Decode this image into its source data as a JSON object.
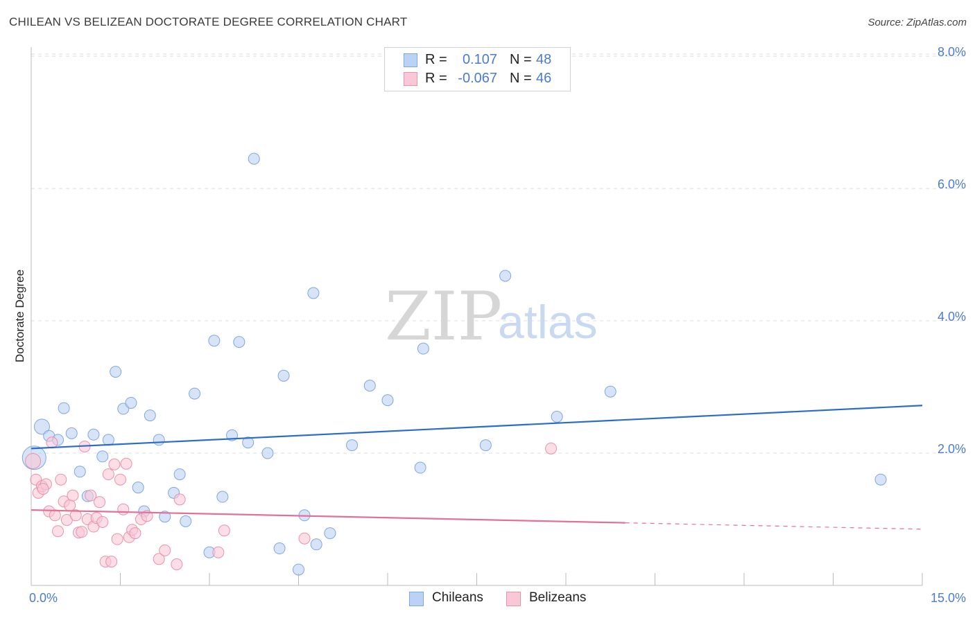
{
  "header": {
    "title": "CHILEAN VS BELIZEAN DOCTORATE DEGREE CORRELATION CHART",
    "source": "Source: ZipAtlas.com"
  },
  "watermark": {
    "zip": "ZIP",
    "atlas": "atlas"
  },
  "legend": {
    "rows": [
      {
        "r_label": "R =",
        "r_value": "0.107",
        "n_label": "N =",
        "n_value": "48"
      },
      {
        "r_label": "R =",
        "r_value": "-0.067",
        "n_label": "N =",
        "n_value": "46"
      }
    ]
  },
  "bottom_legend": [
    "Chileans",
    "Belizeans"
  ],
  "colors": {
    "blue_fill": "#bcd2f4",
    "blue_stroke": "#7fa6e0",
    "blue_line": "#2a6ccc",
    "pink_fill": "#f8c8d6",
    "pink_stroke": "#e991ae",
    "pink_line": "#e46f97",
    "tick_text": "#4a7bd0",
    "grid": "#dcdcdc"
  },
  "chart_data": {
    "type": "scatter",
    "title": "CHILEAN VS BELIZEAN DOCTORATE DEGREE CORRELATION CHART",
    "xlabel": "",
    "ylabel": "Doctorate Degree",
    "xlim": [
      0,
      15
    ],
    "ylim": [
      0,
      8.2
    ],
    "x_tick_labels": [
      {
        "value": 0,
        "label": "0.0%"
      },
      {
        "value": 15,
        "label": "15.0%"
      }
    ],
    "y_tick_labels": [
      {
        "value": 2,
        "label": "2.0%"
      },
      {
        "value": 4,
        "label": "4.0%"
      },
      {
        "value": 6,
        "label": "6.0%"
      },
      {
        "value": 8,
        "label": "8.0%"
      }
    ],
    "x_minor_ticks": [
      1.5,
      3.0,
      4.5,
      6.0,
      7.5,
      9.0,
      10.5,
      12.0,
      13.5,
      15.0
    ],
    "grid": true,
    "series": [
      {
        "name": "Chileans",
        "color": "blue",
        "R": 0.107,
        "N": 48,
        "trend": {
          "x0": 0,
          "y0": 2.07,
          "x1": 15,
          "y1": 2.72,
          "dashed_from": null
        },
        "points": [
          [
            0.05,
            1.93
          ],
          [
            0.18,
            2.4
          ],
          [
            0.3,
            2.26
          ],
          [
            0.45,
            2.2
          ],
          [
            0.55,
            2.68
          ],
          [
            0.68,
            2.3
          ],
          [
            0.82,
            1.72
          ],
          [
            0.95,
            1.35
          ],
          [
            1.05,
            2.28
          ],
          [
            1.2,
            1.95
          ],
          [
            1.3,
            2.2
          ],
          [
            1.42,
            3.23
          ],
          [
            1.55,
            2.67
          ],
          [
            1.68,
            2.76
          ],
          [
            1.8,
            1.48
          ],
          [
            1.9,
            1.12
          ],
          [
            2.0,
            2.57
          ],
          [
            2.15,
            2.2
          ],
          [
            2.25,
            1.04
          ],
          [
            2.4,
            1.4
          ],
          [
            2.5,
            1.68
          ],
          [
            2.6,
            0.97
          ],
          [
            2.75,
            2.9
          ],
          [
            3.0,
            0.5
          ],
          [
            3.08,
            3.7
          ],
          [
            3.22,
            1.34
          ],
          [
            3.38,
            2.27
          ],
          [
            3.5,
            3.68
          ],
          [
            3.65,
            2.16
          ],
          [
            3.75,
            6.45
          ],
          [
            3.98,
            2.0
          ],
          [
            4.18,
            0.56
          ],
          [
            4.25,
            3.17
          ],
          [
            4.5,
            0.24
          ],
          [
            4.6,
            1.06
          ],
          [
            4.75,
            4.42
          ],
          [
            4.8,
            0.62
          ],
          [
            5.03,
            0.79
          ],
          [
            5.4,
            2.12
          ],
          [
            5.7,
            3.02
          ],
          [
            6.0,
            2.8
          ],
          [
            6.55,
            1.78
          ],
          [
            6.6,
            3.58
          ],
          [
            7.65,
            2.12
          ],
          [
            7.98,
            4.68
          ],
          [
            8.85,
            2.55
          ],
          [
            9.75,
            2.93
          ],
          [
            14.3,
            1.6
          ]
        ]
      },
      {
        "name": "Belizeans",
        "color": "pink",
        "R": -0.067,
        "N": 46,
        "trend": {
          "x0": 0,
          "y0": 1.14,
          "x1": 15,
          "y1": 0.85,
          "dashed_from": 10.0
        },
        "points": [
          [
            0.03,
            1.88
          ],
          [
            0.08,
            1.6
          ],
          [
            0.12,
            1.4
          ],
          [
            0.18,
            1.5
          ],
          [
            0.25,
            1.53
          ],
          [
            0.3,
            1.12
          ],
          [
            0.35,
            2.16
          ],
          [
            0.4,
            1.06
          ],
          [
            0.45,
            0.82
          ],
          [
            0.5,
            1.6
          ],
          [
            0.55,
            1.27
          ],
          [
            0.6,
            0.99
          ],
          [
            0.65,
            1.21
          ],
          [
            0.7,
            1.36
          ],
          [
            0.75,
            1.06
          ],
          [
            0.8,
            0.8
          ],
          [
            0.85,
            0.81
          ],
          [
            0.9,
            2.1
          ],
          [
            0.95,
            1.0
          ],
          [
            1.0,
            1.36
          ],
          [
            1.05,
            0.89
          ],
          [
            1.1,
            1.02
          ],
          [
            1.15,
            1.26
          ],
          [
            1.2,
            0.96
          ],
          [
            1.25,
            0.36
          ],
          [
            1.3,
            1.68
          ],
          [
            1.35,
            0.36
          ],
          [
            1.4,
            1.83
          ],
          [
            1.45,
            0.7
          ],
          [
            1.5,
            1.6
          ],
          [
            1.55,
            1.15
          ],
          [
            1.6,
            1.84
          ],
          [
            1.65,
            0.73
          ],
          [
            1.7,
            0.84
          ],
          [
            1.75,
            0.79
          ],
          [
            1.85,
            1.0
          ],
          [
            1.95,
            1.05
          ],
          [
            2.15,
            0.4
          ],
          [
            2.25,
            0.53
          ],
          [
            2.45,
            0.32
          ],
          [
            2.5,
            1.3
          ],
          [
            3.15,
            0.5
          ],
          [
            3.25,
            0.83
          ],
          [
            4.6,
            0.71
          ],
          [
            8.75,
            2.07
          ],
          [
            0.2,
            1.46
          ]
        ]
      }
    ]
  }
}
